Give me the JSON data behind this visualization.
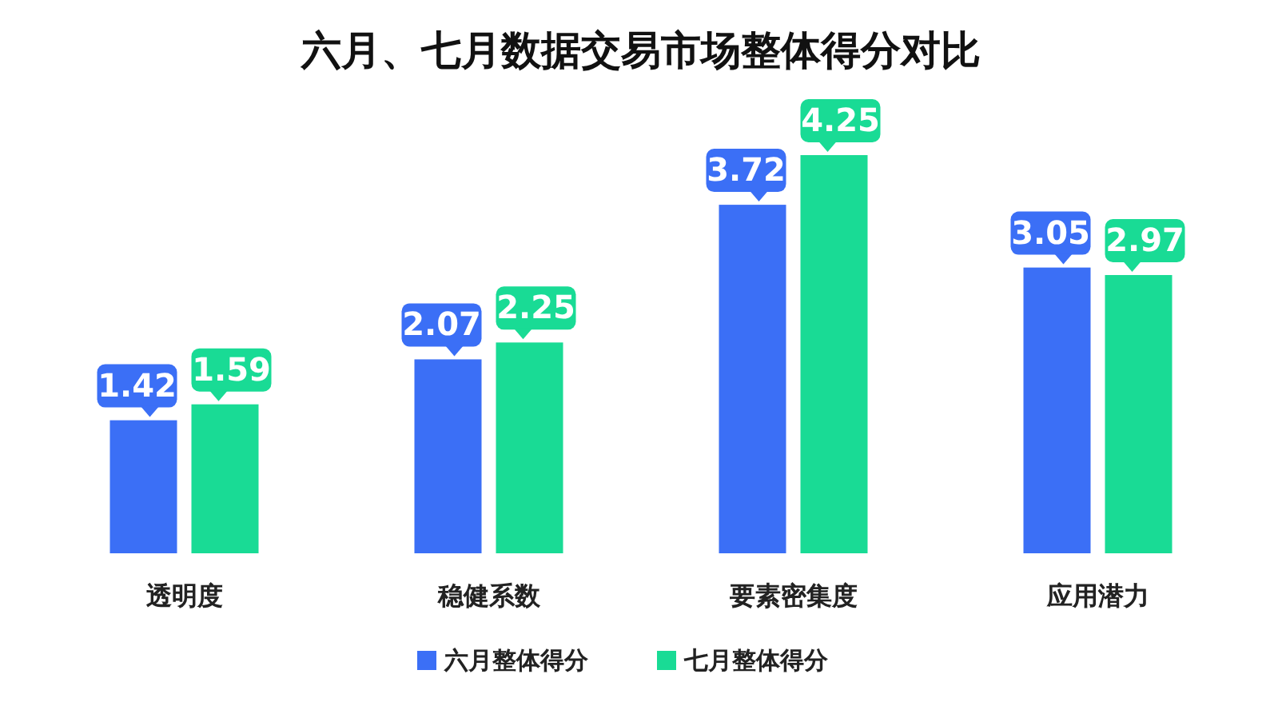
{
  "chart_data": {
    "type": "bar",
    "title": "六月、七月数据交易市场整体得分对比",
    "categories": [
      "透明度",
      "稳健系数",
      "要素密集度",
      "应用潜力"
    ],
    "series": [
      {
        "name": "六月整体得分",
        "color": "#3b6ff6",
        "values": [
          1.42,
          2.07,
          3.72,
          3.05
        ]
      },
      {
        "name": "七月整体得分",
        "color": "#19db95",
        "values": [
          1.59,
          2.25,
          4.25,
          2.97
        ]
      }
    ],
    "data_labels": true,
    "legend": "bottom"
  }
}
